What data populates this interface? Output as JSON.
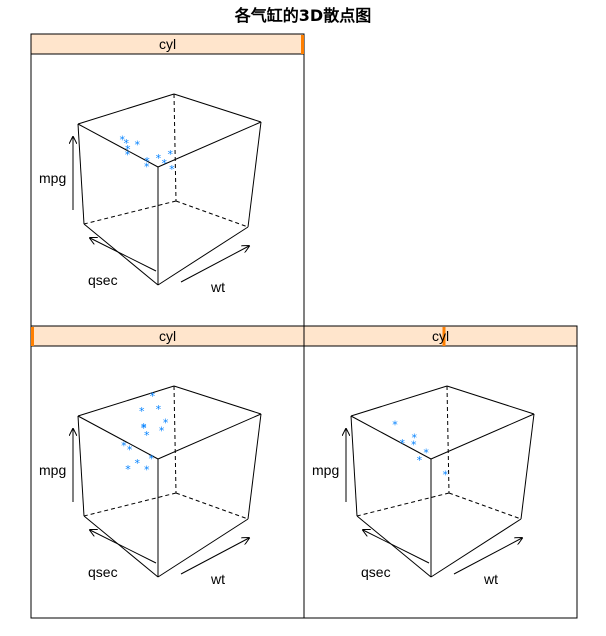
{
  "title": "各气缸的3D散点图",
  "chart_data": [
    {
      "type": "scatter",
      "panel": "top-left",
      "strip_label": "cyl",
      "strip_level_position": "right",
      "xlabel": "wt",
      "ylabel": "qsec",
      "zlabel": "mpg",
      "point_color": "#0080ff",
      "marker": "*",
      "points": [
        {
          "wt": 1.6,
          "qsec": 19.5,
          "mpg": 27
        },
        {
          "wt": 2.0,
          "qsec": 19.8,
          "mpg": 27
        },
        {
          "wt": 2.2,
          "qsec": 20.0,
          "mpg": 26
        },
        {
          "wt": 2.3,
          "qsec": 20.2,
          "mpg": 25
        },
        {
          "wt": 2.8,
          "qsec": 20.1,
          "mpg": 28
        },
        {
          "wt": 2.9,
          "qsec": 19.4,
          "mpg": 24
        },
        {
          "wt": 3.0,
          "qsec": 19.6,
          "mpg": 23
        },
        {
          "wt": 3.3,
          "qsec": 19.0,
          "mpg": 25
        },
        {
          "wt": 3.5,
          "qsec": 18.8,
          "mpg": 24
        },
        {
          "wt": 3.6,
          "qsec": 18.4,
          "mpg": 26
        },
        {
          "wt": 3.8,
          "qsec": 18.6,
          "mpg": 23
        }
      ]
    },
    {
      "type": "scatter",
      "panel": "bottom-left",
      "strip_label": "cyl",
      "strip_level_position": "left",
      "xlabel": "wt",
      "ylabel": "qsec",
      "zlabel": "mpg",
      "point_color": "#0080ff",
      "marker": "*",
      "points": [
        {
          "wt": 1.5,
          "qsec": 16.5,
          "mpg": 33
        },
        {
          "wt": 2.0,
          "qsec": 16.8,
          "mpg": 31
        },
        {
          "wt": 1.8,
          "qsec": 18.0,
          "mpg": 31
        },
        {
          "wt": 2.2,
          "qsec": 18.5,
          "mpg": 28
        },
        {
          "wt": 2.5,
          "qsec": 19.0,
          "mpg": 29
        },
        {
          "wt": 2.9,
          "qsec": 19.4,
          "mpg": 28
        },
        {
          "wt": 2.1,
          "qsec": 20.2,
          "mpg": 25
        },
        {
          "wt": 2.6,
          "qsec": 20.5,
          "mpg": 25
        },
        {
          "wt": 3.2,
          "qsec": 20.8,
          "mpg": 23
        },
        {
          "wt": 3.5,
          "qsec": 20.0,
          "mpg": 24
        },
        {
          "wt": 3.1,
          "qsec": 21.5,
          "mpg": 22
        },
        {
          "wt": 3.6,
          "qsec": 20.6,
          "mpg": 22
        },
        {
          "wt": 3.0,
          "qsec": 17.8,
          "mpg": 30
        },
        {
          "wt": 2.4,
          "qsec": 17.2,
          "mpg": 27
        }
      ]
    },
    {
      "type": "scatter",
      "panel": "bottom-right",
      "strip_label": "cyl",
      "strip_level_position": "middle",
      "xlabel": "wt",
      "ylabel": "qsec",
      "zlabel": "mpg",
      "point_color": "#0080ff",
      "marker": "*",
      "points": [
        {
          "wt": 2.2,
          "qsec": 20.5,
          "mpg": 30
        },
        {
          "wt": 2.4,
          "qsec": 20.2,
          "mpg": 26
        },
        {
          "wt": 2.6,
          "qsec": 19.4,
          "mpg": 27
        },
        {
          "wt": 2.8,
          "qsec": 19.8,
          "mpg": 26
        },
        {
          "wt": 3.1,
          "qsec": 19.8,
          "mpg": 23
        },
        {
          "wt": 3.0,
          "qsec": 19.0,
          "mpg": 24
        },
        {
          "wt": 3.8,
          "qsec": 18.6,
          "mpg": 20
        }
      ]
    }
  ]
}
